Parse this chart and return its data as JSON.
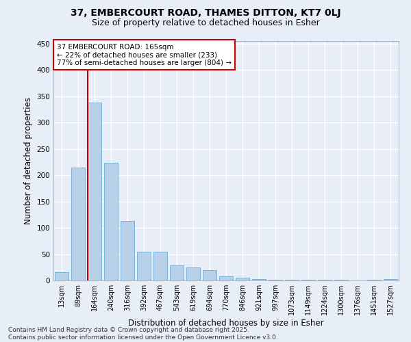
{
  "title1": "37, EMBERCOURT ROAD, THAMES DITTON, KT7 0LJ",
  "title2": "Size of property relative to detached houses in Esher",
  "xlabel": "Distribution of detached houses by size in Esher",
  "ylabel": "Number of detached properties",
  "categories": [
    "13sqm",
    "89sqm",
    "164sqm",
    "240sqm",
    "316sqm",
    "392sqm",
    "467sqm",
    "543sqm",
    "619sqm",
    "694sqm",
    "770sqm",
    "846sqm",
    "921sqm",
    "997sqm",
    "1073sqm",
    "1149sqm",
    "1224sqm",
    "1300sqm",
    "1376sqm",
    "1451sqm",
    "1527sqm"
  ],
  "values": [
    16,
    215,
    338,
    223,
    113,
    54,
    54,
    28,
    25,
    19,
    8,
    5,
    2,
    1,
    1,
    1,
    1,
    1,
    0,
    1,
    2
  ],
  "bar_color": "#b8d0e8",
  "bar_edge_color": "#6aaad4",
  "property_line_idx": 2,
  "annotation_text1": "37 EMBERCOURT ROAD: 165sqm",
  "annotation_text2": "← 22% of detached houses are smaller (233)",
  "annotation_text3": "77% of semi-detached houses are larger (804) →",
  "annotation_box_color": "#ffffff",
  "annotation_box_edge_color": "#cc0000",
  "vline_color": "#cc0000",
  "background_color": "#e8eef8",
  "grid_color": "#ffffff",
  "ylim": [
    0,
    455
  ],
  "yticks": [
    0,
    50,
    100,
    150,
    200,
    250,
    300,
    350,
    400,
    450
  ],
  "footer1": "Contains HM Land Registry data © Crown copyright and database right 2025.",
  "footer2": "Contains public sector information licensed under the Open Government Licence v3.0.",
  "title_fontsize": 10,
  "subtitle_fontsize": 9,
  "axis_label_fontsize": 8.5,
  "tick_fontsize": 7,
  "annotation_fontsize": 7.5,
  "footer_fontsize": 6.5
}
